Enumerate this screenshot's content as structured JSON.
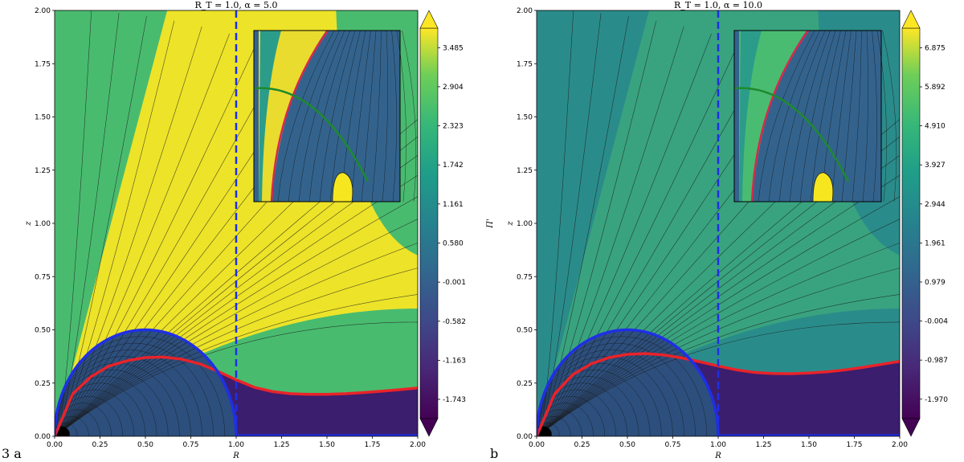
{
  "figure": {
    "panel_labels": [
      "3 a",
      "b"
    ]
  },
  "chart_data": [
    {
      "type": "heatmap",
      "title": "R_T = 1.0, α = 5.0",
      "xlabel": "R",
      "ylabel": "z",
      "xlim": [
        0,
        2
      ],
      "ylim": [
        0,
        2
      ],
      "x_ticks": [
        "0.00",
        "0.25",
        "0.50",
        "0.75",
        "1.00",
        "1.25",
        "1.50",
        "1.75",
        "2.00"
      ],
      "y_ticks": [
        "0.00",
        "0.25",
        "0.50",
        "0.75",
        "1.00",
        "1.25",
        "1.50",
        "1.75",
        "2.00"
      ],
      "colorbar": {
        "label": "Π'",
        "colormap": "viridis",
        "extend": "both",
        "ticks": [
          "-1.743",
          "-1.163",
          "-0.582",
          "-0.001",
          "0.580",
          "1.161",
          "1.742",
          "2.323",
          "2.904",
          "3.485"
        ],
        "vmin": -2.03,
        "vmax": 3.775
      },
      "reference_line": {
        "x": 1.0,
        "color": "#1f2fe6",
        "style": "dashed"
      },
      "blue_boundary": {
        "type": "semicircle",
        "center_R": 0.5,
        "radius": 0.5,
        "color": "#1f2fe6"
      },
      "red_curve": {
        "color": "#e8232a",
        "R": [
          0.0,
          0.1,
          0.2,
          0.3,
          0.4,
          0.5,
          0.6,
          0.7,
          0.8,
          0.9,
          1.0,
          1.1,
          1.2,
          1.3,
          1.4,
          1.5,
          1.6,
          1.7,
          1.8,
          1.9,
          2.0
        ],
        "z": [
          0.0,
          0.2,
          0.28,
          0.33,
          0.355,
          0.37,
          0.372,
          0.362,
          0.34,
          0.305,
          0.265,
          0.23,
          0.21,
          0.2,
          0.197,
          0.197,
          0.2,
          0.205,
          0.212,
          0.219,
          0.227
        ]
      },
      "inset": true
    },
    {
      "type": "heatmap",
      "title": "R_T = 1.0, α = 10.0",
      "xlabel": "R",
      "ylabel": "z",
      "xlim": [
        0,
        2
      ],
      "ylim": [
        0,
        2
      ],
      "x_ticks": [
        "0.00",
        "0.25",
        "0.50",
        "0.75",
        "1.00",
        "1.25",
        "1.50",
        "1.75",
        "2.00"
      ],
      "y_ticks": [
        "0.00",
        "0.25",
        "0.50",
        "0.75",
        "1.00",
        "1.25",
        "1.50",
        "1.75",
        "2.00"
      ],
      "colorbar": {
        "label": "Π'",
        "colormap": "viridis",
        "extend": "both",
        "ticks": [
          "-1.970",
          "-0.987",
          "-0.004",
          "0.979",
          "1.961",
          "2.944",
          "3.927",
          "4.910",
          "5.892",
          "6.875"
        ],
        "vmin": -2.46,
        "vmax": 7.37
      },
      "reference_line": {
        "x": 1.0,
        "color": "#1f2fe6",
        "style": "dashed"
      },
      "blue_boundary": {
        "type": "semicircle",
        "center_R": 0.5,
        "radius": 0.5,
        "color": "#1f2fe6"
      },
      "red_curve": {
        "color": "#e8232a",
        "R": [
          0.0,
          0.1,
          0.2,
          0.3,
          0.4,
          0.5,
          0.6,
          0.7,
          0.8,
          0.9,
          1.0,
          1.1,
          1.2,
          1.3,
          1.4,
          1.5,
          1.6,
          1.7,
          1.8,
          1.9,
          2.0
        ],
        "z": [
          0.0,
          0.2,
          0.29,
          0.34,
          0.37,
          0.385,
          0.388,
          0.382,
          0.368,
          0.35,
          0.33,
          0.312,
          0.3,
          0.295,
          0.294,
          0.297,
          0.303,
          0.312,
          0.324,
          0.338,
          0.352
        ]
      },
      "inset": true
    }
  ]
}
